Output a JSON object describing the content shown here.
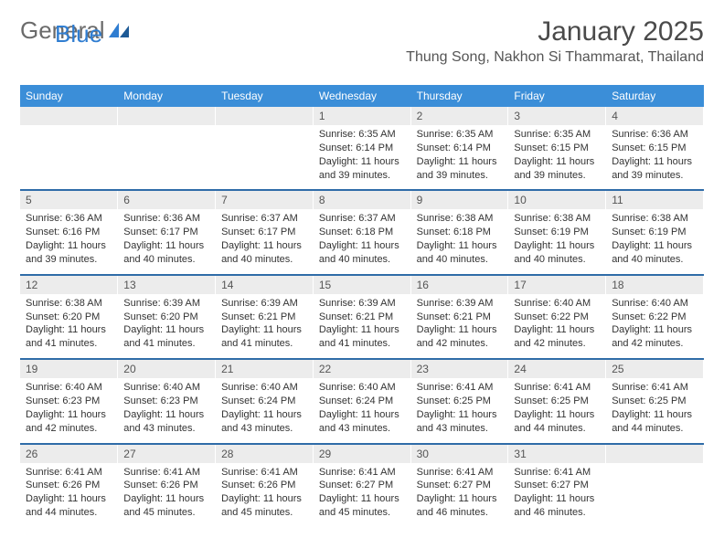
{
  "logo": {
    "text1": "General",
    "text2": "Blue"
  },
  "title": "January 2025",
  "location": "Thung Song, Nakhon Si Thammarat, Thailand",
  "colors": {
    "header_bg": "#3b8ed8",
    "header_text": "#ffffff",
    "date_bg": "#ececec",
    "week_divider": "#2f6ca8",
    "logo_gray": "#6b6b6b",
    "logo_blue": "#2f7dd1"
  },
  "day_names": [
    "Sunday",
    "Monday",
    "Tuesday",
    "Wednesday",
    "Thursday",
    "Friday",
    "Saturday"
  ],
  "weeks": [
    [
      null,
      null,
      null,
      {
        "d": "1",
        "sr": "Sunrise: 6:35 AM",
        "ss": "Sunset: 6:14 PM",
        "dl1": "Daylight: 11 hours",
        "dl2": "and 39 minutes."
      },
      {
        "d": "2",
        "sr": "Sunrise: 6:35 AM",
        "ss": "Sunset: 6:14 PM",
        "dl1": "Daylight: 11 hours",
        "dl2": "and 39 minutes."
      },
      {
        "d": "3",
        "sr": "Sunrise: 6:35 AM",
        "ss": "Sunset: 6:15 PM",
        "dl1": "Daylight: 11 hours",
        "dl2": "and 39 minutes."
      },
      {
        "d": "4",
        "sr": "Sunrise: 6:36 AM",
        "ss": "Sunset: 6:15 PM",
        "dl1": "Daylight: 11 hours",
        "dl2": "and 39 minutes."
      }
    ],
    [
      {
        "d": "5",
        "sr": "Sunrise: 6:36 AM",
        "ss": "Sunset: 6:16 PM",
        "dl1": "Daylight: 11 hours",
        "dl2": "and 39 minutes."
      },
      {
        "d": "6",
        "sr": "Sunrise: 6:36 AM",
        "ss": "Sunset: 6:17 PM",
        "dl1": "Daylight: 11 hours",
        "dl2": "and 40 minutes."
      },
      {
        "d": "7",
        "sr": "Sunrise: 6:37 AM",
        "ss": "Sunset: 6:17 PM",
        "dl1": "Daylight: 11 hours",
        "dl2": "and 40 minutes."
      },
      {
        "d": "8",
        "sr": "Sunrise: 6:37 AM",
        "ss": "Sunset: 6:18 PM",
        "dl1": "Daylight: 11 hours",
        "dl2": "and 40 minutes."
      },
      {
        "d": "9",
        "sr": "Sunrise: 6:38 AM",
        "ss": "Sunset: 6:18 PM",
        "dl1": "Daylight: 11 hours",
        "dl2": "and 40 minutes."
      },
      {
        "d": "10",
        "sr": "Sunrise: 6:38 AM",
        "ss": "Sunset: 6:19 PM",
        "dl1": "Daylight: 11 hours",
        "dl2": "and 40 minutes."
      },
      {
        "d": "11",
        "sr": "Sunrise: 6:38 AM",
        "ss": "Sunset: 6:19 PM",
        "dl1": "Daylight: 11 hours",
        "dl2": "and 40 minutes."
      }
    ],
    [
      {
        "d": "12",
        "sr": "Sunrise: 6:38 AM",
        "ss": "Sunset: 6:20 PM",
        "dl1": "Daylight: 11 hours",
        "dl2": "and 41 minutes."
      },
      {
        "d": "13",
        "sr": "Sunrise: 6:39 AM",
        "ss": "Sunset: 6:20 PM",
        "dl1": "Daylight: 11 hours",
        "dl2": "and 41 minutes."
      },
      {
        "d": "14",
        "sr": "Sunrise: 6:39 AM",
        "ss": "Sunset: 6:21 PM",
        "dl1": "Daylight: 11 hours",
        "dl2": "and 41 minutes."
      },
      {
        "d": "15",
        "sr": "Sunrise: 6:39 AM",
        "ss": "Sunset: 6:21 PM",
        "dl1": "Daylight: 11 hours",
        "dl2": "and 41 minutes."
      },
      {
        "d": "16",
        "sr": "Sunrise: 6:39 AM",
        "ss": "Sunset: 6:21 PM",
        "dl1": "Daylight: 11 hours",
        "dl2": "and 42 minutes."
      },
      {
        "d": "17",
        "sr": "Sunrise: 6:40 AM",
        "ss": "Sunset: 6:22 PM",
        "dl1": "Daylight: 11 hours",
        "dl2": "and 42 minutes."
      },
      {
        "d": "18",
        "sr": "Sunrise: 6:40 AM",
        "ss": "Sunset: 6:22 PM",
        "dl1": "Daylight: 11 hours",
        "dl2": "and 42 minutes."
      }
    ],
    [
      {
        "d": "19",
        "sr": "Sunrise: 6:40 AM",
        "ss": "Sunset: 6:23 PM",
        "dl1": "Daylight: 11 hours",
        "dl2": "and 42 minutes."
      },
      {
        "d": "20",
        "sr": "Sunrise: 6:40 AM",
        "ss": "Sunset: 6:23 PM",
        "dl1": "Daylight: 11 hours",
        "dl2": "and 43 minutes."
      },
      {
        "d": "21",
        "sr": "Sunrise: 6:40 AM",
        "ss": "Sunset: 6:24 PM",
        "dl1": "Daylight: 11 hours",
        "dl2": "and 43 minutes."
      },
      {
        "d": "22",
        "sr": "Sunrise: 6:40 AM",
        "ss": "Sunset: 6:24 PM",
        "dl1": "Daylight: 11 hours",
        "dl2": "and 43 minutes."
      },
      {
        "d": "23",
        "sr": "Sunrise: 6:41 AM",
        "ss": "Sunset: 6:25 PM",
        "dl1": "Daylight: 11 hours",
        "dl2": "and 43 minutes."
      },
      {
        "d": "24",
        "sr": "Sunrise: 6:41 AM",
        "ss": "Sunset: 6:25 PM",
        "dl1": "Daylight: 11 hours",
        "dl2": "and 44 minutes."
      },
      {
        "d": "25",
        "sr": "Sunrise: 6:41 AM",
        "ss": "Sunset: 6:25 PM",
        "dl1": "Daylight: 11 hours",
        "dl2": "and 44 minutes."
      }
    ],
    [
      {
        "d": "26",
        "sr": "Sunrise: 6:41 AM",
        "ss": "Sunset: 6:26 PM",
        "dl1": "Daylight: 11 hours",
        "dl2": "and 44 minutes."
      },
      {
        "d": "27",
        "sr": "Sunrise: 6:41 AM",
        "ss": "Sunset: 6:26 PM",
        "dl1": "Daylight: 11 hours",
        "dl2": "and 45 minutes."
      },
      {
        "d": "28",
        "sr": "Sunrise: 6:41 AM",
        "ss": "Sunset: 6:26 PM",
        "dl1": "Daylight: 11 hours",
        "dl2": "and 45 minutes."
      },
      {
        "d": "29",
        "sr": "Sunrise: 6:41 AM",
        "ss": "Sunset: 6:27 PM",
        "dl1": "Daylight: 11 hours",
        "dl2": "and 45 minutes."
      },
      {
        "d": "30",
        "sr": "Sunrise: 6:41 AM",
        "ss": "Sunset: 6:27 PM",
        "dl1": "Daylight: 11 hours",
        "dl2": "and 46 minutes."
      },
      {
        "d": "31",
        "sr": "Sunrise: 6:41 AM",
        "ss": "Sunset: 6:27 PM",
        "dl1": "Daylight: 11 hours",
        "dl2": "and 46 minutes."
      },
      null
    ]
  ]
}
